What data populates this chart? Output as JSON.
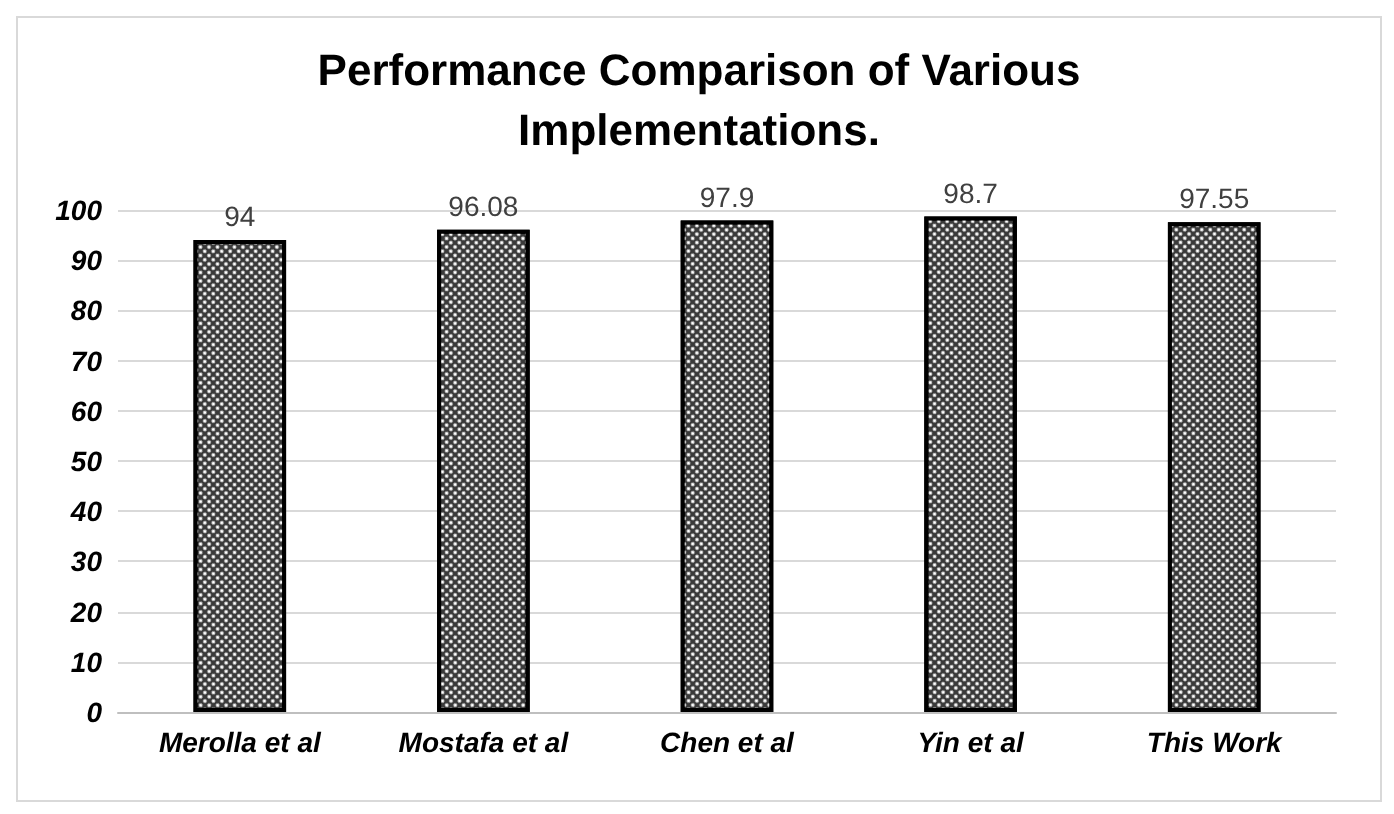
{
  "chart_data": {
    "type": "bar",
    "title": "Performance Comparison of Various\nImplementations.",
    "categories": [
      "Merolla et al",
      "Mostafa et al",
      "Chen et al",
      "Yin et al",
      "This Work"
    ],
    "values": [
      94,
      96.08,
      97.9,
      98.7,
      97.55
    ],
    "color": "#3a3a3a",
    "ylim": [
      0,
      100
    ],
    "yticks": [
      0,
      10,
      20,
      30,
      40,
      50,
      60,
      70,
      80,
      90,
      100
    ],
    "grid": "y",
    "data_labels": true
  }
}
